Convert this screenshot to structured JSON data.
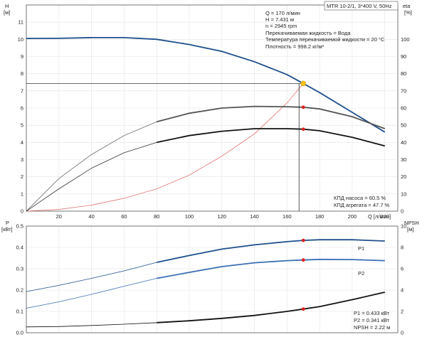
{
  "chart_data": [
    {
      "type": "line",
      "panel": "upper",
      "left_axis": {
        "label": "H",
        "unit": "[м]",
        "ylim": [
          0,
          12
        ],
        "ticks": [
          0,
          1,
          2,
          3,
          4,
          5,
          6,
          7,
          8,
          9,
          10,
          11
        ]
      },
      "right_axis": {
        "label": "eta",
        "unit": "[%]",
        "ylim": [
          0,
          120
        ],
        "ticks": [
          0,
          10,
          20,
          30,
          40,
          50,
          60,
          70,
          80,
          90,
          100
        ]
      },
      "x_axis": {
        "label": "Q [л/мин]",
        "xlim": [
          0,
          228
        ],
        "ticks": [
          20,
          40,
          60,
          80,
          100,
          120,
          140,
          160,
          180,
          200,
          220
        ]
      },
      "grid": true,
      "series": [
        {
          "axis": "left",
          "color": "#1e4f8c",
          "points": [
            [
              0,
              10.05
            ],
            [
              20,
              10.06
            ],
            [
              40,
              10.1
            ],
            [
              60,
              10.1
            ],
            [
              80,
              10.0
            ],
            [
              100,
              9.7
            ],
            [
              120,
              9.3
            ],
            [
              140,
              8.7
            ],
            [
              160,
              7.95
            ],
            [
              170,
              7.431
            ],
            [
              180,
              6.9
            ],
            [
              200,
              5.75
            ],
            [
              220,
              4.6
            ]
          ]
        },
        {
          "axis": "right",
          "color": "#e06060",
          "points": [
            [
              0,
              0
            ],
            [
              20,
              1
            ],
            [
              40,
              3.5
            ],
            [
              60,
              7.5
            ],
            [
              80,
              13
            ],
            [
              100,
              21
            ],
            [
              120,
              32
            ],
            [
              140,
              45
            ],
            [
              160,
              63
            ],
            [
              170,
              74.3
            ]
          ]
        },
        {
          "axis": "right",
          "color": "#555555",
          "points": [
            [
              0,
              0
            ],
            [
              20,
              19
            ],
            [
              40,
              33
            ],
            [
              60,
              44
            ],
            [
              80,
              52
            ],
            [
              100,
              57
            ],
            [
              120,
              60
            ],
            [
              140,
              61
            ],
            [
              160,
              60.8
            ],
            [
              170,
              60.5
            ],
            [
              180,
              59.5
            ],
            [
              200,
              55
            ],
            [
              220,
              48
            ]
          ]
        },
        {
          "axis": "right",
          "color": "#111111",
          "points": [
            [
              0,
              0
            ],
            [
              20,
              13
            ],
            [
              40,
              25
            ],
            [
              60,
              34
            ],
            [
              80,
              40
            ],
            [
              100,
              44
            ],
            [
              120,
              46.5
            ],
            [
              140,
              48
            ],
            [
              160,
              48
            ],
            [
              170,
              47.7
            ],
            [
              180,
              46.8
            ],
            [
              200,
              43
            ],
            [
              220,
              38
            ]
          ]
        }
      ],
      "duty_point": {
        "Q": 170,
        "H": 7.431,
        "eta_pump": 60.5,
        "eta_unit": 47.7
      },
      "title": "MTR 10-2/1, 3*400 V, 50Hz",
      "info_lines": [
        "Q = 170 л/мин",
        "H = 7.431 м",
        "n = 2945 rpm",
        "Перекачиваемая жидкость = Вода",
        "Температура перекачиваемой жидкости = 20 °C",
        "Плотность = 998.2 кг/м³"
      ],
      "legend_lines": [
        "КПД насоса = 60.5 %",
        "КПД агрегата = 47.7 %"
      ]
    },
    {
      "type": "line",
      "panel": "lower",
      "left_axis": {
        "label": "P",
        "unit": "[кВт]",
        "ylim": [
          0,
          0.5
        ],
        "ticks": [
          0.0,
          0.1,
          0.2,
          0.3,
          0.4,
          0.5
        ],
        "tick_labels": [
          "0.0",
          "0.1",
          "0.2",
          "0.3",
          "0.4",
          "0.5"
        ]
      },
      "right_axis": {
        "label": "NPSH",
        "unit": "[м]",
        "ylim": [
          0,
          10
        ],
        "ticks": [
          0,
          2,
          4,
          6,
          8,
          10
        ]
      },
      "x_axis": {
        "xlim": [
          0,
          228
        ]
      },
      "grid": true,
      "series": [
        {
          "name": "P1",
          "axis": "left",
          "color": "#1e4f8c",
          "points": [
            [
              0,
              0.193
            ],
            [
              20,
              0.222
            ],
            [
              40,
              0.255
            ],
            [
              60,
              0.29
            ],
            [
              80,
              0.33
            ],
            [
              100,
              0.362
            ],
            [
              120,
              0.392
            ],
            [
              140,
              0.412
            ],
            [
              160,
              0.427
            ],
            [
              170,
              0.433
            ],
            [
              180,
              0.436
            ],
            [
              200,
              0.436
            ],
            [
              220,
              0.43
            ]
          ]
        },
        {
          "name": "P2",
          "axis": "left",
          "color": "#3b6fb5",
          "points": [
            [
              0,
              0.115
            ],
            [
              20,
              0.145
            ],
            [
              40,
              0.18
            ],
            [
              60,
              0.218
            ],
            [
              80,
              0.255
            ],
            [
              100,
              0.283
            ],
            [
              120,
              0.31
            ],
            [
              140,
              0.328
            ],
            [
              160,
              0.338
            ],
            [
              170,
              0.341
            ],
            [
              180,
              0.344
            ],
            [
              200,
              0.343
            ],
            [
              220,
              0.338
            ]
          ]
        },
        {
          "name": "NPSH",
          "axis": "right",
          "color": "#111111",
          "points": [
            [
              0,
              0.55
            ],
            [
              20,
              0.58
            ],
            [
              40,
              0.68
            ],
            [
              60,
              0.8
            ],
            [
              80,
              0.95
            ],
            [
              100,
              1.12
            ],
            [
              120,
              1.35
            ],
            [
              140,
              1.62
            ],
            [
              160,
              2.0
            ],
            [
              170,
              2.22
            ],
            [
              180,
              2.45
            ],
            [
              200,
              3.1
            ],
            [
              220,
              3.8
            ]
          ]
        }
      ],
      "duty_point": {
        "Q": 170,
        "P1": 0.433,
        "P2": 0.341,
        "NPSH": 2.22
      },
      "legend_lines": [
        "P1 = 0.433 кВт",
        "P2 = 0.341 кВт",
        "NPSH = 2.22 м"
      ]
    }
  ]
}
